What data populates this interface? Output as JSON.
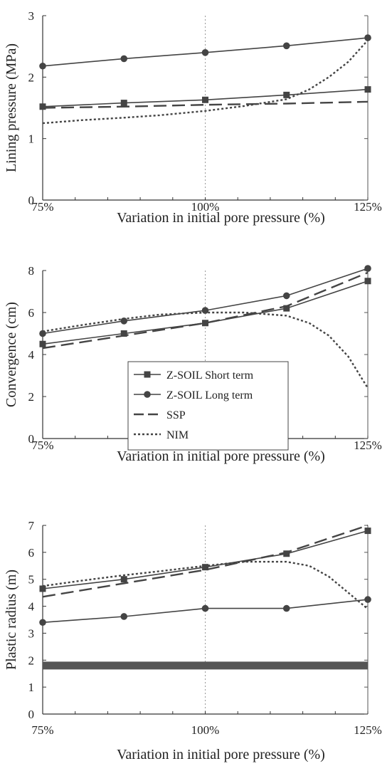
{
  "chart_data": [
    {
      "type": "line",
      "xlabel": "Variation in initial pore pressure  (%)",
      "ylabel": "Lining pressure  (MPa)",
      "ylim": [
        0,
        3
      ],
      "xlim": [
        75,
        125
      ],
      "xticks": [
        75,
        100,
        125
      ],
      "xtick_labels": [
        "75%",
        "100%",
        "125%"
      ],
      "yticks": [
        0,
        1,
        2,
        3
      ],
      "ytick_labels": [
        "0",
        "1",
        "2",
        "3"
      ],
      "grid": "vertical line at 100%",
      "series": [
        {
          "name": "Z-SOIL Short term",
          "style": "square",
          "x": [
            75,
            87.5,
            100,
            112.5,
            125
          ],
          "y": [
            1.52,
            1.58,
            1.63,
            1.71,
            1.8
          ]
        },
        {
          "name": "Z-SOIL Long term",
          "style": "circle",
          "x": [
            75,
            87.5,
            100,
            112.5,
            125
          ],
          "y": [
            2.18,
            2.3,
            2.4,
            2.51,
            2.64
          ]
        },
        {
          "name": "SSP",
          "style": "dashed",
          "x": [
            75,
            87.5,
            100,
            112.5,
            125
          ],
          "y": [
            1.5,
            1.52,
            1.55,
            1.57,
            1.6
          ]
        },
        {
          "name": "NIM",
          "style": "dotted",
          "x": [
            75,
            81,
            87.5,
            93,
            100,
            106,
            112.5,
            116,
            119,
            122,
            125
          ],
          "y": [
            1.25,
            1.3,
            1.34,
            1.38,
            1.45,
            1.53,
            1.64,
            1.8,
            2.0,
            2.25,
            2.6
          ]
        }
      ]
    },
    {
      "type": "line",
      "xlabel": "Variation in initial pore pressure  (%)",
      "ylabel": "Convergence  (cm)",
      "ylim": [
        0,
        8
      ],
      "xlim": [
        75,
        125
      ],
      "xticks": [
        75,
        100,
        125
      ],
      "xtick_labels": [
        "75%",
        "100%",
        "125%"
      ],
      "yticks": [
        0,
        2,
        4,
        6,
        8
      ],
      "ytick_labels": [
        "0",
        "2",
        "4",
        "6",
        "8"
      ],
      "grid": "vertical line at 100%",
      "legend": {
        "position": "center",
        "entries": [
          "Z-SOIL Short term",
          "Z-SOIL Long term",
          "SSP",
          "NIM"
        ]
      },
      "series": [
        {
          "name": "Z-SOIL Short term",
          "style": "square",
          "x": [
            75,
            87.5,
            100,
            112.5,
            125
          ],
          "y": [
            4.5,
            5.0,
            5.5,
            6.2,
            7.5
          ]
        },
        {
          "name": "Z-SOIL Long term",
          "style": "circle",
          "x": [
            75,
            87.5,
            100,
            112.5,
            125
          ],
          "y": [
            5.0,
            5.6,
            6.1,
            6.8,
            8.1
          ]
        },
        {
          "name": "SSP",
          "style": "dashed",
          "x": [
            75,
            87.5,
            100,
            112.5,
            125
          ],
          "y": [
            4.3,
            4.9,
            5.5,
            6.3,
            7.9
          ]
        },
        {
          "name": "NIM",
          "style": "dotted",
          "x": [
            75,
            81,
            87.5,
            93,
            100,
            106,
            112.5,
            116,
            119,
            122,
            125
          ],
          "y": [
            5.1,
            5.4,
            5.7,
            5.9,
            6.0,
            6.0,
            5.85,
            5.5,
            4.9,
            3.9,
            2.4
          ]
        }
      ]
    },
    {
      "type": "line",
      "xlabel": "Variation in initial pore pressure  (%)",
      "ylabel": "Plastic radius  (m)",
      "ylim": [
        0,
        7
      ],
      "xlim": [
        75,
        125
      ],
      "xticks": [
        75,
        100,
        125
      ],
      "xtick_labels": [
        "75%",
        "100%",
        "125%"
      ],
      "yticks": [
        0,
        1,
        2,
        3,
        4,
        5,
        6,
        7
      ],
      "ytick_labels": [
        "0",
        "1",
        "2",
        "3",
        "4",
        "5",
        "6",
        "7"
      ],
      "grid": "vertical line at 100%",
      "series": [
        {
          "name": "Z-SOIL Short term",
          "style": "square",
          "x": [
            75,
            87.5,
            100,
            112.5,
            125
          ],
          "y": [
            4.65,
            5.0,
            5.45,
            5.95,
            6.8
          ]
        },
        {
          "name": "Z-SOIL Long term",
          "style": "circle",
          "x": [
            75,
            87.5,
            100,
            112.5,
            125
          ],
          "y": [
            3.4,
            3.62,
            3.92,
            3.92,
            4.25
          ]
        },
        {
          "name": "SSP",
          "style": "dashed",
          "x": [
            75,
            87.5,
            100,
            112.5,
            125
          ],
          "y": [
            4.35,
            4.85,
            5.35,
            6.0,
            7.0
          ]
        },
        {
          "name": "NIM",
          "style": "dotted",
          "x": [
            75,
            81,
            87.5,
            93,
            100,
            106,
            112.5,
            116,
            119,
            122,
            125
          ],
          "y": [
            4.75,
            4.95,
            5.15,
            5.3,
            5.5,
            5.65,
            5.65,
            5.5,
            5.1,
            4.5,
            3.9
          ]
        },
        {
          "name": "",
          "style": "thick-band",
          "x": [
            75,
            125
          ],
          "y": [
            1.8,
            1.8
          ]
        }
      ]
    }
  ]
}
